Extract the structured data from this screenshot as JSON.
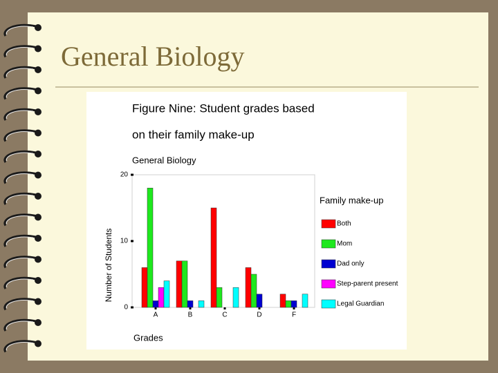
{
  "slide": {
    "title": "General Biology"
  },
  "chart_data": {
    "type": "bar",
    "title": [
      "Figure Nine: Student grades based",
      "on their family make-up"
    ],
    "subtitle": "General Biology",
    "y_label": "Number of Students",
    "x_label": "Grades",
    "legend_title": "Family make-up",
    "legend": "right",
    "categories": [
      "A",
      "B",
      "C",
      "D",
      "F"
    ],
    "series": [
      {
        "name": "Both",
        "color": "#ff0000",
        "values": [
          6,
          7,
          15,
          6,
          2
        ]
      },
      {
        "name": "Mom",
        "color": "#1ee81e",
        "values": [
          18,
          7,
          3,
          5,
          1
        ]
      },
      {
        "name": "Dad only",
        "color": "#0000d0",
        "values": [
          1,
          1,
          0,
          2,
          1
        ]
      },
      {
        "name": "Step-parent present",
        "color": "#ff00ff",
        "values": [
          3,
          0,
          0,
          0,
          0
        ]
      },
      {
        "name": "Legal Guardian",
        "color": "#00ffff",
        "values": [
          4,
          1,
          3,
          0,
          2
        ]
      }
    ],
    "ylim": [
      0,
      20
    ],
    "yticks": [
      0,
      10,
      20
    ]
  }
}
